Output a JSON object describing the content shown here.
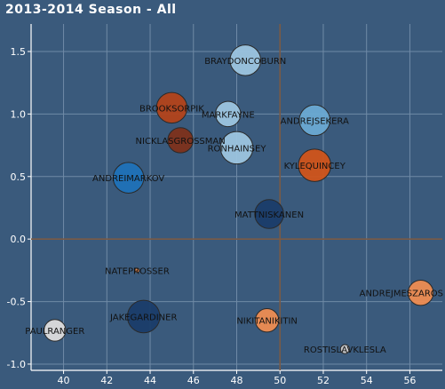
{
  "chart_data": {
    "type": "scatter",
    "title": "2013-2014 Season - All",
    "xlabel": "",
    "ylabel": "",
    "xlim": [
      38.5,
      57.5
    ],
    "ylim": [
      -1.05,
      1.72
    ],
    "x_ticks": [
      40,
      42,
      44,
      46,
      48,
      50,
      52,
      54,
      56
    ],
    "y_ticks": [
      -1.0,
      -0.5,
      0.0,
      0.5,
      1.0,
      1.5
    ],
    "x_tick_labels": [
      "40",
      "42",
      "44",
      "46",
      "48",
      "50",
      "52",
      "54",
      "56"
    ],
    "y_tick_labels": [
      "-1.0",
      "-0.5",
      "0.0",
      "0.5",
      "1.0",
      "1.5"
    ],
    "crosshair": {
      "x": 50,
      "y": 0
    },
    "grid": true,
    "points": [
      {
        "label": "BRAYDONCOBURN",
        "x": 48.4,
        "y": 1.43,
        "size": 17,
        "color": "#9cc5df"
      },
      {
        "label": "BROOKSORPIK",
        "x": 45.0,
        "y": 1.05,
        "size": 17,
        "color": "#b2431a"
      },
      {
        "label": "MARKFAYNE",
        "x": 47.6,
        "y": 1.0,
        "size": 14,
        "color": "#9cc5df"
      },
      {
        "label": "ANDREJSEKERA",
        "x": 51.6,
        "y": 0.95,
        "size": 17,
        "color": "#6aaad3"
      },
      {
        "label": "NICKLASGROSSMAN",
        "x": 45.4,
        "y": 0.79,
        "size": 14,
        "color": "#7d321b"
      },
      {
        "label": "RONHAINSEY",
        "x": 48.0,
        "y": 0.73,
        "size": 18,
        "color": "#9cc5df"
      },
      {
        "label": "KYLEQUINCEY",
        "x": 51.6,
        "y": 0.59,
        "size": 18,
        "color": "#d0541a"
      },
      {
        "label": "ANDREIMARKOV",
        "x": 43.0,
        "y": 0.49,
        "size": 17,
        "color": "#1f72b8"
      },
      {
        "label": "MATTNISKANEN",
        "x": 49.5,
        "y": 0.2,
        "size": 16,
        "color": "#1a3d6a"
      },
      {
        "label": "NATEPROSSER",
        "x": 43.4,
        "y": -0.25,
        "size": 2.5,
        "color": "#ee8d52"
      },
      {
        "label": "ANDREJMESZAROS",
        "x": 56.5,
        "y": -0.43,
        "size": 14,
        "color": "#ee8d52"
      },
      {
        "label": "JAKEGARDINER",
        "x": 43.7,
        "y": -0.62,
        "size": 18,
        "color": "#1a3d6a"
      },
      {
        "label": "NIKITANIKITIN",
        "x": 49.4,
        "y": -0.65,
        "size": 13,
        "color": "#ee8d52"
      },
      {
        "label": "PAULRANGER",
        "x": 39.6,
        "y": -0.73,
        "size": 12,
        "color": "#dddddd"
      },
      {
        "label": "ROSTISLAVKLESLA",
        "x": 53.0,
        "y": -0.88,
        "size": 5,
        "color": "#cccccc"
      }
    ]
  }
}
